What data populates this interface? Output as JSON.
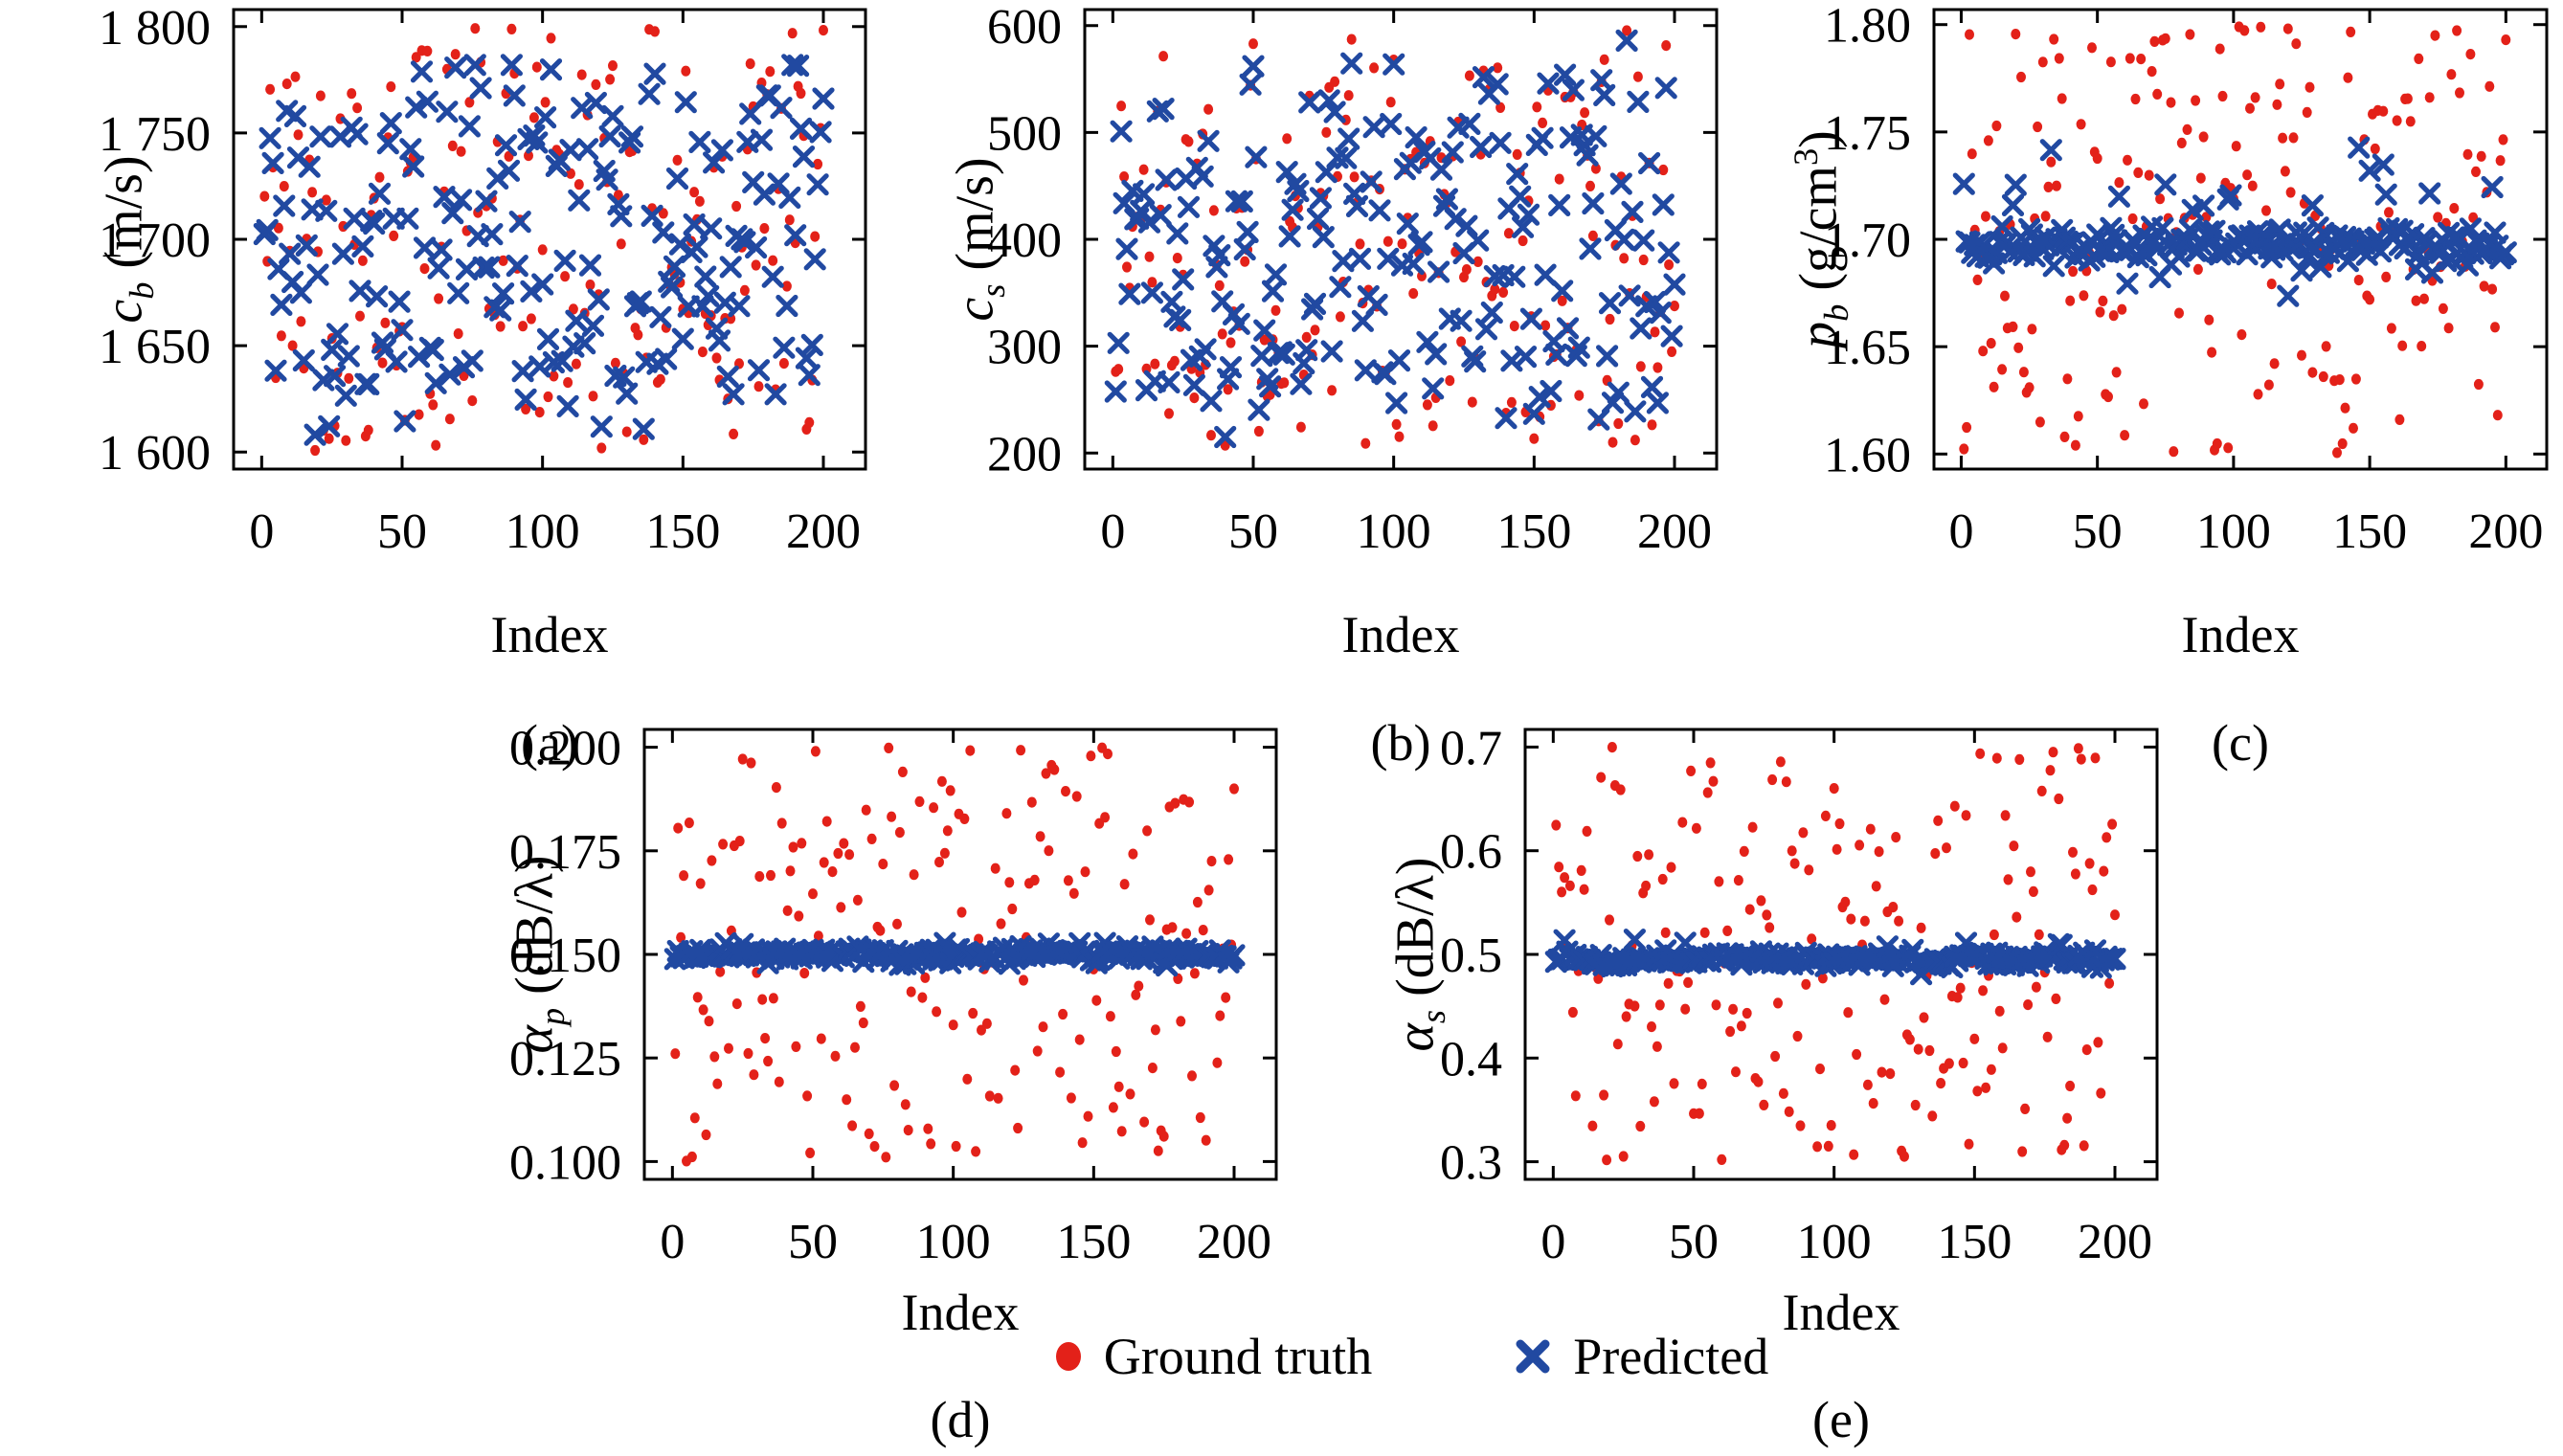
{
  "colors": {
    "ground_truth": "#e32119",
    "predicted": "#2149a1",
    "axis": "#000000",
    "background": "#ffffff"
  },
  "legend": {
    "items": [
      {
        "label": "Ground truth",
        "marker": "dot"
      },
      {
        "label": "Predicted",
        "marker": "x"
      }
    ]
  },
  "chart_data": [
    {
      "id": "a",
      "type": "scatter",
      "panel_label": "(a)",
      "xlabel": "Index",
      "ylabel": {
        "var": "c",
        "sub": "b",
        "unit_pre": " (m/s)",
        "unit_sup": "",
        "unit_post": ""
      },
      "xlim": [
        -10,
        215
      ],
      "ylim": [
        1592,
        1808
      ],
      "x_ticks": [
        {
          "v": 0,
          "label": "0"
        },
        {
          "v": 50,
          "label": "50"
        },
        {
          "v": 100,
          "label": "100"
        },
        {
          "v": 150,
          "label": "150"
        },
        {
          "v": 200,
          "label": "200"
        }
      ],
      "y_ticks": [
        {
          "v": 1600,
          "label": "1 600"
        },
        {
          "v": 1650,
          "label": "1 650"
        },
        {
          "v": 1700,
          "label": "1 700"
        },
        {
          "v": 1750,
          "label": "1 750"
        },
        {
          "v": 1800,
          "label": "1 800"
        }
      ],
      "n": 200,
      "seed": 42,
      "grid": false,
      "legend_position": "shared-bottom",
      "series": [
        {
          "name": "Ground truth",
          "marker": "dot",
          "color": "#e32119",
          "gen": {
            "kind": "uniform",
            "min": 1600,
            "max": 1800
          }
        },
        {
          "name": "Predicted",
          "marker": "x",
          "color": "#2149a1",
          "gen": {
            "kind": "track",
            "center": 1700,
            "shrink": 0.8,
            "noise": 11,
            "min": 1608,
            "max": 1782
          }
        }
      ]
    },
    {
      "id": "b",
      "type": "scatter",
      "panel_label": "(b)",
      "xlabel": "Index",
      "ylabel": {
        "var": "c",
        "sub": "s",
        "unit_pre": " (m/s)",
        "unit_sup": "",
        "unit_post": ""
      },
      "xlim": [
        -10,
        215
      ],
      "ylim": [
        185,
        615
      ],
      "x_ticks": [
        {
          "v": 0,
          "label": "0"
        },
        {
          "v": 50,
          "label": "50"
        },
        {
          "v": 100,
          "label": "100"
        },
        {
          "v": 150,
          "label": "150"
        },
        {
          "v": 200,
          "label": "200"
        }
      ],
      "y_ticks": [
        {
          "v": 200,
          "label": "200"
        },
        {
          "v": 300,
          "label": "300"
        },
        {
          "v": 400,
          "label": "400"
        },
        {
          "v": 500,
          "label": "500"
        },
        {
          "v": 600,
          "label": "600"
        }
      ],
      "n": 200,
      "seed": 1337,
      "grid": false,
      "legend_position": "shared-bottom",
      "series": [
        {
          "name": "Ground truth",
          "marker": "dot",
          "color": "#e32119",
          "gen": {
            "kind": "uniform",
            "min": 203,
            "max": 600
          }
        },
        {
          "name": "Predicted",
          "marker": "x",
          "color": "#2149a1",
          "gen": {
            "kind": "track",
            "center": 400,
            "shrink": 0.85,
            "noise": 20,
            "min": 215,
            "max": 592
          }
        }
      ]
    },
    {
      "id": "c",
      "type": "scatter",
      "panel_label": "(c)",
      "xlabel": "Index",
      "ylabel": {
        "var": "p",
        "sub": "b",
        "unit_pre": " (g/cm",
        "unit_sup": "3",
        "unit_post": ")"
      },
      "xlim": [
        -10,
        215
      ],
      "ylim": [
        1.593,
        1.807
      ],
      "x_ticks": [
        {
          "v": 0,
          "label": "0"
        },
        {
          "v": 50,
          "label": "50"
        },
        {
          "v": 100,
          "label": "100"
        },
        {
          "v": 150,
          "label": "150"
        },
        {
          "v": 200,
          "label": "200"
        }
      ],
      "y_ticks": [
        {
          "v": 1.6,
          "label": "1.60"
        },
        {
          "v": 1.65,
          "label": "1.65"
        },
        {
          "v": 1.7,
          "label": "1.70"
        },
        {
          "v": 1.75,
          "label": "1.75"
        },
        {
          "v": 1.8,
          "label": "1.80"
        }
      ],
      "n": 200,
      "seed": 7,
      "grid": false,
      "legend_position": "shared-bottom",
      "series": [
        {
          "name": "Ground truth",
          "marker": "dot",
          "color": "#e32119",
          "gen": {
            "kind": "uniform",
            "min": 1.6,
            "max": 1.8
          }
        },
        {
          "name": "Predicted",
          "marker": "x",
          "color": "#2149a1",
          "gen": {
            "kind": "band",
            "base": 1.697,
            "sigma": 0.0042,
            "out_p": 0.1,
            "out_lo": 0.006,
            "out_hi": 0.038,
            "down_p": 0.02,
            "down_lo": 0.008,
            "down_hi": 0.02
          }
        }
      ]
    },
    {
      "id": "d",
      "type": "scatter",
      "panel_label": "(d)",
      "xlabel": "Index",
      "ylabel": {
        "var": "α",
        "sub": "p",
        "unit_pre": " (dB/λ)",
        "unit_sup": "",
        "unit_post": ""
      },
      "xlim": [
        -10,
        215
      ],
      "ylim": [
        0.0957,
        0.2043
      ],
      "x_ticks": [
        {
          "v": 0,
          "label": "0"
        },
        {
          "v": 50,
          "label": "50"
        },
        {
          "v": 100,
          "label": "100"
        },
        {
          "v": 150,
          "label": "150"
        },
        {
          "v": 200,
          "label": "200"
        }
      ],
      "y_ticks": [
        {
          "v": 0.1,
          "label": "0.100"
        },
        {
          "v": 0.125,
          "label": "0.125"
        },
        {
          "v": 0.15,
          "label": "0.150"
        },
        {
          "v": 0.175,
          "label": "0.175"
        },
        {
          "v": 0.2,
          "label": "0.200"
        }
      ],
      "n": 200,
      "seed": 99,
      "grid": false,
      "legend_position": "shared-bottom",
      "series": [
        {
          "name": "Ground truth",
          "marker": "dot",
          "color": "#e32119",
          "gen": {
            "kind": "uniform",
            "min": 0.1,
            "max": 0.2
          }
        },
        {
          "name": "Predicted",
          "marker": "x",
          "color": "#2149a1",
          "gen": {
            "kind": "band",
            "base": 0.15,
            "sigma": 0.0009,
            "out_p": 0.03,
            "out_lo": 0.001,
            "out_hi": 0.003,
            "down_p": 0.03,
            "down_lo": 0.001,
            "down_hi": 0.003
          }
        }
      ]
    },
    {
      "id": "e",
      "type": "scatter",
      "panel_label": "(e)",
      "xlabel": "Index",
      "ylabel": {
        "var": "α",
        "sub": "s",
        "unit_pre": " (dB/λ)",
        "unit_sup": "",
        "unit_post": ""
      },
      "xlim": [
        -10,
        215
      ],
      "ylim": [
        0.283,
        0.717
      ],
      "x_ticks": [
        {
          "v": 0,
          "label": "0"
        },
        {
          "v": 50,
          "label": "50"
        },
        {
          "v": 100,
          "label": "100"
        },
        {
          "v": 150,
          "label": "150"
        },
        {
          "v": 200,
          "label": "200"
        }
      ],
      "y_ticks": [
        {
          "v": 0.3,
          "label": "0.3"
        },
        {
          "v": 0.4,
          "label": "0.4"
        },
        {
          "v": 0.5,
          "label": "0.5"
        },
        {
          "v": 0.6,
          "label": "0.6"
        },
        {
          "v": 0.7,
          "label": "0.7"
        }
      ],
      "n": 200,
      "seed": 2024,
      "grid": false,
      "legend_position": "shared-bottom",
      "series": [
        {
          "name": "Ground truth",
          "marker": "dot",
          "color": "#e32119",
          "gen": {
            "kind": "uniform",
            "min": 0.3,
            "max": 0.7
          }
        },
        {
          "name": "Predicted",
          "marker": "x",
          "color": "#2149a1",
          "gen": {
            "kind": "band",
            "base": 0.4955,
            "sigma": 0.0035,
            "out_p": 0.05,
            "out_lo": 0.005,
            "out_hi": 0.02,
            "down_p": 0.01,
            "down_lo": 0.004,
            "down_hi": 0.008
          }
        }
      ]
    }
  ]
}
